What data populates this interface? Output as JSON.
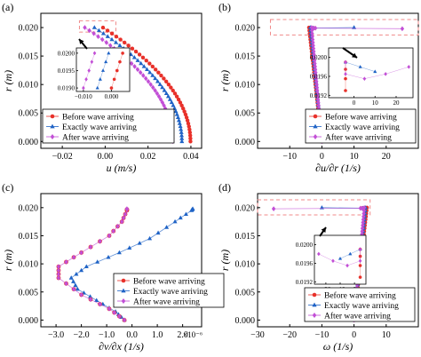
{
  "figure": {
    "colors": {
      "before": "#e8312a",
      "exactly": "#1f63c6",
      "after": "#c24fd6",
      "highlight": "#f08a8a"
    },
    "markers": {
      "before": "circle",
      "exactly": "triangle",
      "after": "diamond"
    }
  },
  "chart_data": [
    {
      "panel": "(a)",
      "type": "scatter",
      "xlabel": "u (m/s)",
      "ylabel": "r (m)",
      "xlim": [
        -0.03,
        0.045
      ],
      "ylim": [
        -0.0012,
        0.0225
      ],
      "xticks": [
        -0.02,
        0.0,
        0.02,
        0.04
      ],
      "xtick_labels": [
        "−0.02",
        "0.00",
        "0.02",
        "0.04"
      ],
      "yticks": [
        0.0,
        0.005,
        0.01,
        0.015,
        0.02
      ],
      "ytick_labels": [
        "0.000",
        "0.005",
        "0.010",
        "0.015",
        "0.020"
      ],
      "legend": {
        "position": "bottom-left",
        "labels": [
          "Before wave arriving",
          "Exactly wave arriving",
          "After wave arriving"
        ]
      },
      "profiles": {
        "before": [
          0.0,
          0.0398,
          -0.001
        ],
        "exactly": [
          0.0,
          0.0358,
          -0.005
        ],
        "after": [
          0.0,
          0.0315,
          -0.0095
        ]
      },
      "profile_shape": "parabola",
      "highlight_box": {
        "x": [
          -0.012,
          0.005
        ],
        "y": [
          0.0192,
          0.0212
        ]
      },
      "inset": {
        "xlim": [
          -0.0125,
          0.0065
        ],
        "ylim": [
          0.0189,
          0.02015
        ],
        "xticks": [
          -0.01,
          0.0
        ],
        "xtick_labels": [
          "−0.010",
          "0.000"
        ],
        "yticks": [
          0.019,
          0.0195,
          0.02
        ],
        "ytick_labels": [
          "0.0190",
          "0.0195",
          "0.0200"
        ],
        "series": {
          "before": [
            [
              0.004,
              0.02
            ],
            [
              0.003,
              0.01975
            ],
            [
              0.002,
              0.0195
            ],
            [
              0.001,
              0.01925
            ],
            [
              0.0,
              0.019
            ]
          ],
          "exactly": [
            [
              -0.001,
              0.02
            ],
            [
              -0.002,
              0.01975
            ],
            [
              -0.003,
              0.0195
            ],
            [
              -0.004,
              0.01925
            ],
            [
              -0.005,
              0.019
            ]
          ],
          "after": [
            [
              -0.006,
              0.02
            ],
            [
              -0.007,
              0.01975
            ],
            [
              -0.008,
              0.0195
            ],
            [
              -0.009,
              0.01925
            ],
            [
              -0.01,
              0.019
            ]
          ]
        }
      }
    },
    {
      "panel": "(b)",
      "type": "scatter",
      "xlabel": "∂u/∂r (1/s)",
      "ylabel": "r (m)",
      "xlim": [
        -20,
        30
      ],
      "ylim": [
        -0.0012,
        0.0225
      ],
      "xticks": [
        -10,
        0,
        10,
        20
      ],
      "xtick_labels": [
        "−10",
        "0",
        "10",
        "20"
      ],
      "yticks": [
        0.0,
        0.005,
        0.01,
        0.015,
        0.02
      ],
      "ytick_labels": [
        "0.000",
        "0.005",
        "0.010",
        "0.015",
        "0.020"
      ],
      "legend": {
        "position": "bottom-right",
        "labels": [
          "Before wave arriving",
          "Exactly wave arriving",
          "After wave arriving"
        ]
      },
      "profiles": {
        "before": [
          0.0,
          -0.01,
          -4.0
        ],
        "exactly": [
          0.0,
          -0.01,
          -3.6
        ],
        "after": [
          0.0,
          -0.01,
          -3.2
        ]
      },
      "profile_shape": "linear",
      "surface_points": {
        "before": [
          [
            -3.4,
            0.0197
          ],
          [
            -2.8,
            0.0199
          ],
          [
            -2.5,
            0.0199
          ]
        ],
        "exactly": [
          [
            -2.8,
            0.0199
          ],
          [
            10.0,
            0.02
          ]
        ],
        "after": [
          [
            -2.6,
            0.0199
          ],
          [
            -2.0,
            0.0199
          ],
          [
            25.0,
            0.0198
          ]
        ]
      },
      "highlight_box": {
        "x": [
          -16,
          30
        ],
        "y": [
          0.0187,
          0.0214
        ]
      },
      "inset": {
        "xlim": [
          -12,
          28
        ],
        "ylim": [
          0.01915,
          0.0202
        ],
        "xticks": [
          0,
          10,
          20
        ],
        "xtick_labels": [
          "0",
          "10",
          "20"
        ],
        "yticks": [
          0.0192,
          0.0196,
          0.02
        ],
        "ytick_labels": [
          "0.0192",
          "0.0196",
          "0.0200"
        ],
        "series": {
          "before": [
            [
              -4.0,
              0.0199
            ],
            [
              -4.0,
              0.01975
            ],
            [
              -4.0,
              0.01955
            ],
            [
              -4.0,
              0.0193
            ]
          ],
          "exactly": [
            [
              -4.0,
              0.0199
            ],
            [
              3.0,
              0.0198
            ],
            [
              10.0,
              0.0197
            ]
          ],
          "after": [
            [
              -4.0,
              0.0199
            ],
            [
              -4.0,
              0.01965
            ],
            [
              5.0,
              0.01955
            ],
            [
              15.0,
              0.01965
            ],
            [
              26.0,
              0.0198
            ]
          ]
        }
      }
    },
    {
      "panel": "(c)",
      "type": "scatter",
      "xlabel": "∂v/∂x (1/s)",
      "ylabel": "r (m)",
      "xlim": [
        -3.6e-06,
        2.75e-06
      ],
      "ylim": [
        -0.0012,
        0.0225
      ],
      "xticks": [
        -3e-06,
        -2e-06,
        -1e-06,
        0.0,
        1e-06,
        2e-06
      ],
      "xtick_labels": [
        "−3.0",
        "−2.0",
        "−1.0",
        "0.0",
        "1.0",
        "2.0"
      ],
      "x_multiplier": "×10⁻⁶",
      "yticks": [
        0.0,
        0.005,
        0.01,
        0.015,
        0.02
      ],
      "ytick_labels": [
        "0.000",
        "0.005",
        "0.010",
        "0.015",
        "0.020"
      ],
      "legend": {
        "position": "bottom-right",
        "labels": [
          "Before wave arriving",
          "Exactly wave arriving",
          "After wave arriving"
        ]
      },
      "series": {
        "before_after": [
          [
            -3e-07,
            0.0
          ],
          [
            -9e-07,
            0.002
          ],
          [
            -2e-06,
            0.0045
          ],
          [
            -2.9e-06,
            0.0075
          ],
          [
            -2.9e-06,
            0.0095
          ],
          [
            -2e-06,
            0.012
          ],
          [
            -9e-07,
            0.015
          ],
          [
            -4e-07,
            0.0175
          ],
          [
            -2e-07,
            0.0195
          ],
          [
            -2e-07,
            0.0198
          ]
        ],
        "exactly": [
          [
            -3e-07,
            0.0
          ],
          [
            -6.5e-07,
            0.0015
          ],
          [
            -1.4e-06,
            0.0035
          ],
          [
            -2.15e-06,
            0.0055
          ],
          [
            -2.4e-06,
            0.0075
          ],
          [
            -1.8e-06,
            0.0095
          ],
          [
            -5e-07,
            0.012
          ],
          [
            7e-07,
            0.0145
          ],
          [
            1.7e-06,
            0.0175
          ],
          [
            2.35e-06,
            0.0195
          ],
          [
            2.4e-06,
            0.0198
          ]
        ]
      }
    },
    {
      "panel": "(d)",
      "type": "scatter",
      "xlabel": "ω (1/s)",
      "ylabel": "r (m)",
      "xlim": [
        -30,
        20
      ],
      "ylim": [
        -0.0012,
        0.0225
      ],
      "xticks": [
        -30,
        -20,
        -10,
        0,
        10
      ],
      "xtick_labels": [
        "−30",
        "−20",
        "−10",
        "0",
        "10"
      ],
      "yticks": [
        0.0,
        0.005,
        0.01,
        0.015,
        0.02
      ],
      "ytick_labels": [
        "0.000",
        "0.005",
        "0.010",
        "0.015",
        "0.020"
      ],
      "legend": {
        "position": "bottom-right",
        "labels": [
          "Before wave arriving",
          "Exactly wave arriving",
          "After wave arriving"
        ]
      },
      "profiles": {
        "before": [
          0.0,
          0.0,
          4.0
        ],
        "exactly": [
          0.0,
          0.0,
          3.6
        ],
        "after": [
          0.0,
          0.0,
          3.2
        ]
      },
      "profile_shape": "linear",
      "surface_points": {
        "before": [
          [
            3.4,
            0.0197
          ],
          [
            2.8,
            0.0199
          ],
          [
            2.5,
            0.0199
          ]
        ],
        "exactly": [
          [
            2.8,
            0.0199
          ],
          [
            -10.0,
            0.02
          ]
        ],
        "after": [
          [
            2.6,
            0.0199
          ],
          [
            2.0,
            0.0199
          ],
          [
            -25.0,
            0.0198
          ]
        ]
      },
      "highlight_box": {
        "x": [
          -30,
          5
        ],
        "y": [
          0.0187,
          0.0214
        ]
      },
      "inset": {
        "xlim": [
          -28,
          8
        ],
        "ylim": [
          0.01915,
          0.0202
        ],
        "xticks": [
          -20,
          -10,
          0
        ],
        "xtick_labels": [
          "−20",
          "−10",
          "0"
        ],
        "yticks": [
          0.0192,
          0.0196,
          0.02
        ],
        "ytick_labels": [
          "0.0192",
          "0.0196",
          "0.0200"
        ],
        "series": {
          "before": [
            [
              4.0,
              0.0199
            ],
            [
              4.0,
              0.01975
            ],
            [
              4.0,
              0.01955
            ],
            [
              4.0,
              0.0193
            ]
          ],
          "exactly": [
            [
              4.0,
              0.0199
            ],
            [
              -3.0,
              0.0198
            ],
            [
              -10.0,
              0.0197
            ]
          ],
          "after": [
            [
              4.0,
              0.0199
            ],
            [
              4.0,
              0.01965
            ],
            [
              -5.0,
              0.01955
            ],
            [
              -15.0,
              0.01965
            ],
            [
              -25.0,
              0.0198
            ]
          ]
        }
      }
    }
  ]
}
